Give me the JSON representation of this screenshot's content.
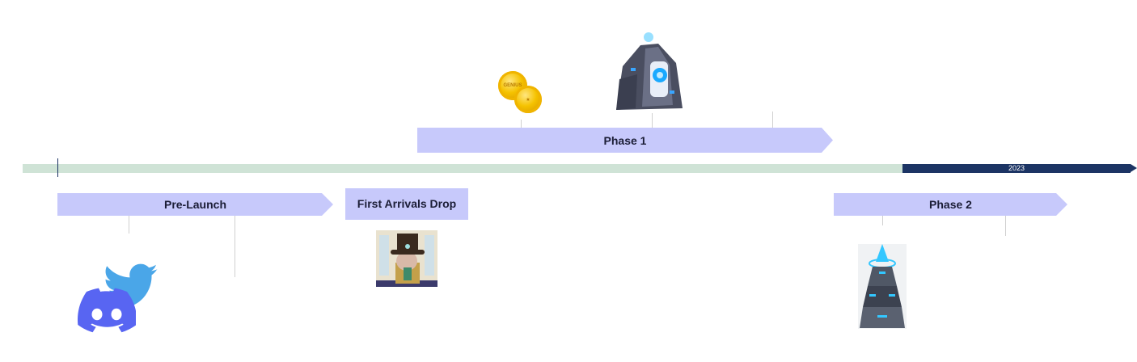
{
  "timeline": {
    "year_label": "2023",
    "colors": {
      "track": "#cfe3d6",
      "year_bar": "#1c3464",
      "phase_fill": "#c7c9fb"
    }
  },
  "phases": {
    "pre_launch": "Pre-Launch",
    "first_arrivals": "First Arrivals Drop",
    "phase1": "Phase 1",
    "phase2": "Phase 2"
  },
  "illustrations": {
    "coins_icon": "gold-coins",
    "portal_icon": "stone-portal",
    "avatar_icon": "top-hat-character",
    "tower_icon": "crystal-tower",
    "social_icons": [
      "twitter-icon",
      "discord-icon"
    ]
  }
}
